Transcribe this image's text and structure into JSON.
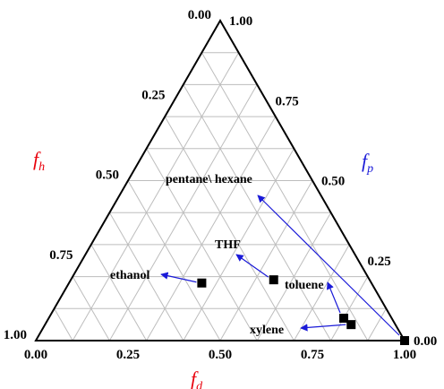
{
  "chart_data": {
    "type": "scatter",
    "subtype": "ternary",
    "axes": {
      "fd": {
        "label": "f",
        "subscript": "d",
        "color": "#e8000b",
        "ticks": [
          "0.00",
          "0.25",
          "0.50",
          "0.75",
          "1.00"
        ]
      },
      "fp": {
        "label": "f",
        "subscript": "p",
        "color": "#1a1ad8",
        "ticks": [
          "0.00",
          "0.25",
          "0.50",
          "0.75",
          "1.00"
        ]
      },
      "fh": {
        "label": "f",
        "subscript": "h",
        "color": "#e8000b",
        "ticks": [
          "0.00",
          "0.25",
          "0.50",
          "0.75",
          "1.00"
        ]
      }
    },
    "grid": true,
    "grid_step": 0.1,
    "series": [
      {
        "marker": "square",
        "color": "#000000",
        "points": [
          {
            "label": "ethanol",
            "fd": 0.36,
            "fp": 0.18,
            "fh": 0.46
          },
          {
            "label": "THF",
            "fd": 0.55,
            "fp": 0.19,
            "fh": 0.26
          },
          {
            "label": "toluene",
            "fd": 0.8,
            "fp": 0.07,
            "fh": 0.13
          },
          {
            "label": "xylene",
            "fd": 0.83,
            "fp": 0.05,
            "fh": 0.12
          },
          {
            "label": "pentane\\ hexane",
            "fd": 1.0,
            "fp": 0.0,
            "fh": 0.0
          }
        ]
      }
    ]
  }
}
